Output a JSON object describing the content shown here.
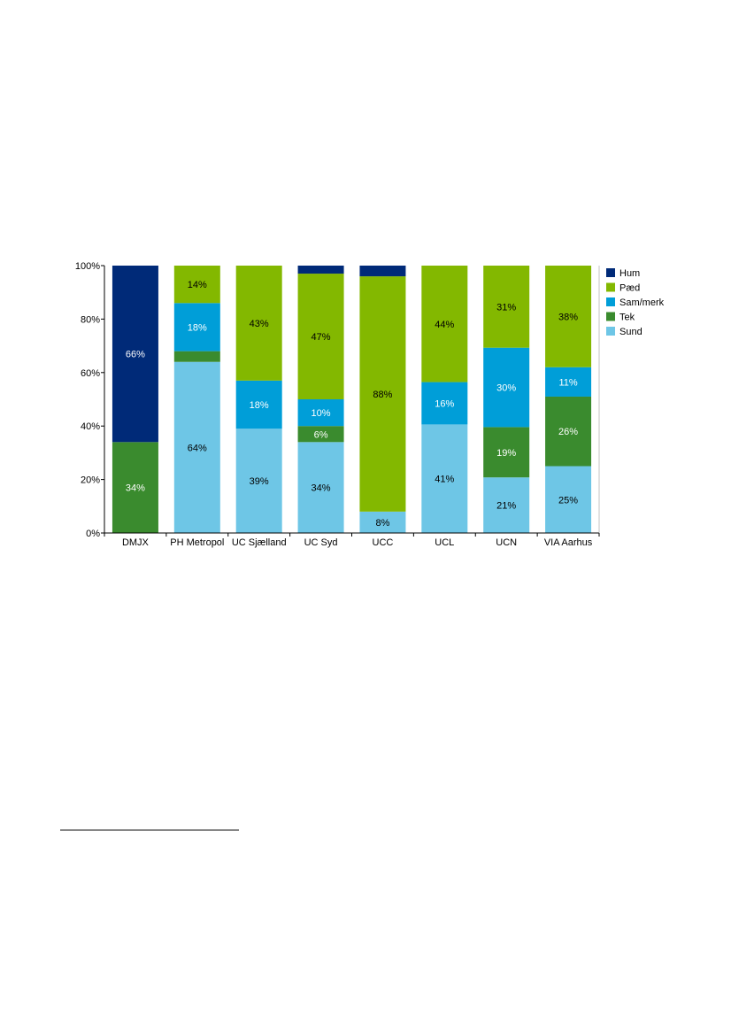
{
  "chart_data": {
    "type": "bar",
    "stacked": true,
    "percent": true,
    "categories": [
      "DMJX",
      "PH Metropol",
      "UC Sjælland",
      "UC Syd",
      "UCC",
      "UCL",
      "UCN",
      "VIA Aarhus"
    ],
    "series": [
      {
        "name": "Sund",
        "color": "#6ec6e6",
        "label_color": "#000000",
        "values": [
          0,
          64,
          39,
          34,
          8,
          41,
          21,
          25
        ],
        "labels": [
          "",
          "64%",
          "39%",
          "34%",
          "8%",
          "41%",
          "21%",
          "25%"
        ]
      },
      {
        "name": "Tek",
        "color": "#3a8b2e",
        "label_color": "#ffffff",
        "values": [
          34,
          4,
          0,
          6,
          0,
          0,
          19,
          26
        ],
        "labels": [
          "34%",
          "",
          "",
          "6%",
          "",
          "",
          "19%",
          "26%"
        ]
      },
      {
        "name": "Sam/merk",
        "color": "#009ed8",
        "label_color": "#ffffff",
        "values": [
          0,
          18,
          18,
          10,
          0,
          16,
          30,
          11
        ],
        "labels": [
          "",
          "18%",
          "18%",
          "10%",
          "",
          "16%",
          "30%",
          "11%"
        ]
      },
      {
        "name": "Pæd",
        "color": "#83b800",
        "label_color": "#000000",
        "values": [
          0,
          14,
          43,
          47,
          88,
          44,
          31,
          38
        ],
        "labels": [
          "",
          "14%",
          "43%",
          "47%",
          "88%",
          "44%",
          "31%",
          "38%"
        ]
      },
      {
        "name": "Hum",
        "color": "#002a78",
        "label_color": "#ffffff",
        "values": [
          66,
          0,
          0,
          3,
          4,
          0,
          0,
          0
        ],
        "labels": [
          "66%",
          "",
          "",
          "",
          "",
          "",
          "",
          ""
        ]
      }
    ],
    "legend_order": [
      "Hum",
      "Pæd",
      "Sam/merk",
      "Tek",
      "Sund"
    ],
    "yticks": [
      "0%",
      "20%",
      "40%",
      "60%",
      "80%",
      "100%"
    ],
    "ylim": [
      0,
      100
    ],
    "legend_position": "right",
    "grid": false
  }
}
